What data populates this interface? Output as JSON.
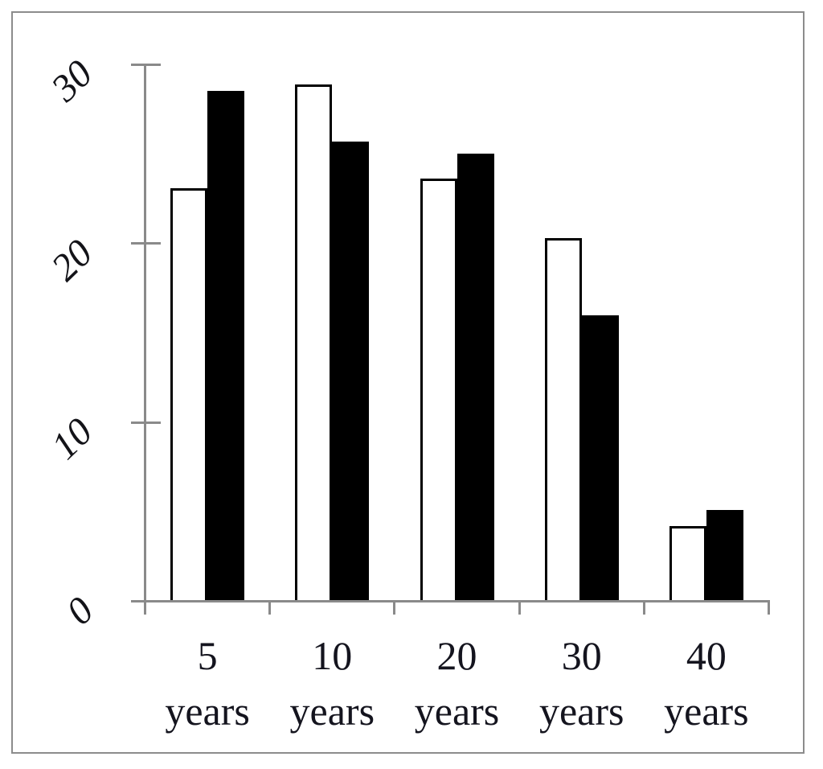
{
  "figure": {
    "background": "#ffffff",
    "frame_color": "#8c8c8c",
    "axis_color": "#8a8a8a",
    "text_color": "#14141e",
    "bar_outline_color": "#000000"
  },
  "chart_data": {
    "type": "bar",
    "title": "",
    "xlabel": "",
    "ylabel": "",
    "categories": [
      "5 years",
      "10 years",
      "20 years",
      "30 years",
      "40 years"
    ],
    "series": [
      {
        "name": "white",
        "fill": "#ffffff",
        "values": [
          23.1,
          28.9,
          23.6,
          20.3,
          4.2
        ]
      },
      {
        "name": "black",
        "fill": "#000000",
        "values": [
          28.5,
          25.7,
          25.0,
          16.0,
          5.1
        ]
      }
    ],
    "yticks": [
      0,
      10,
      20,
      30
    ],
    "ylim": [
      0,
      30
    ],
    "grid": false,
    "legend": "none",
    "ytick_label_style": "italic serif rotated -45deg",
    "xtick_label_lines": 2
  }
}
